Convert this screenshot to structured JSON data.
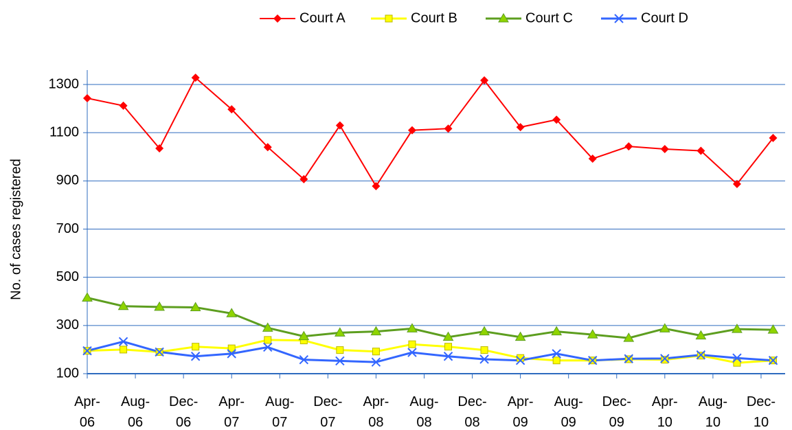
{
  "chart_data": {
    "type": "line",
    "y_label": "No. of cases registered",
    "x": [
      "2006-04",
      "2006-07",
      "2006-10",
      "2007-01",
      "2007-04",
      "2007-07",
      "2007-10",
      "2008-01",
      "2008-04",
      "2008-07",
      "2008-10",
      "2009-01",
      "2009-04",
      "2009-07",
      "2009-10",
      "2010-01",
      "2010-04",
      "2010-07",
      "2010-10",
      "2011-01"
    ],
    "series": [
      {
        "name": "Court A",
        "color": "#ff0000",
        "marker": "diamond",
        "values": [
          1243,
          1212,
          1035,
          1328,
          1197,
          1040,
          907,
          1130,
          878,
          1110,
          1117,
          1317,
          1123,
          1154,
          992,
          1043,
          1032,
          1025,
          887,
          1078
        ]
      },
      {
        "name": "Court B",
        "color": "#ffff00",
        "marker": "square",
        "values": [
          195,
          200,
          190,
          212,
          205,
          240,
          238,
          198,
          192,
          222,
          212,
          198,
          165,
          155,
          155,
          160,
          158,
          175,
          145,
          155
        ]
      },
      {
        "name": "Court C",
        "color": "#5d9e1f",
        "marker": "triangle",
        "values": [
          415,
          380,
          377,
          375,
          350,
          290,
          255,
          270,
          275,
          287,
          252,
          275,
          252,
          275,
          262,
          248,
          287,
          258,
          285,
          282
        ]
      },
      {
        "name": "Court D",
        "color": "#3366ff",
        "marker": "x",
        "values": [
          195,
          233,
          190,
          172,
          183,
          210,
          158,
          153,
          148,
          188,
          172,
          160,
          155,
          183,
          155,
          162,
          163,
          178,
          165,
          155
        ]
      }
    ],
    "xlim": [
      "2006-04",
      "2011-02"
    ],
    "xticks": [
      {
        "value": "2006-04",
        "label": "Apr-06"
      },
      {
        "value": "2006-08",
        "label": "Aug-06"
      },
      {
        "value": "2006-12",
        "label": "Dec-06"
      },
      {
        "value": "2007-04",
        "label": "Apr-07"
      },
      {
        "value": "2007-08",
        "label": "Aug-07"
      },
      {
        "value": "2007-12",
        "label": "Dec-07"
      },
      {
        "value": "2008-04",
        "label": "Apr-08"
      },
      {
        "value": "2008-08",
        "label": "Aug-08"
      },
      {
        "value": "2008-12",
        "label": "Dec-08"
      },
      {
        "value": "2009-04",
        "label": "Apr-09"
      },
      {
        "value": "2009-08",
        "label": "Aug-09"
      },
      {
        "value": "2009-12",
        "label": "Dec-09"
      },
      {
        "value": "2010-04",
        "label": "Apr-10"
      },
      {
        "value": "2010-08",
        "label": "Aug-10"
      },
      {
        "value": "2010-12",
        "label": "Dec-10"
      }
    ],
    "ylim": [
      100,
      1360
    ],
    "yticks": [
      100,
      300,
      500,
      700,
      900,
      1100,
      1300
    ],
    "grid": true,
    "grid_color": "#2e6bbf",
    "legend": "top"
  }
}
